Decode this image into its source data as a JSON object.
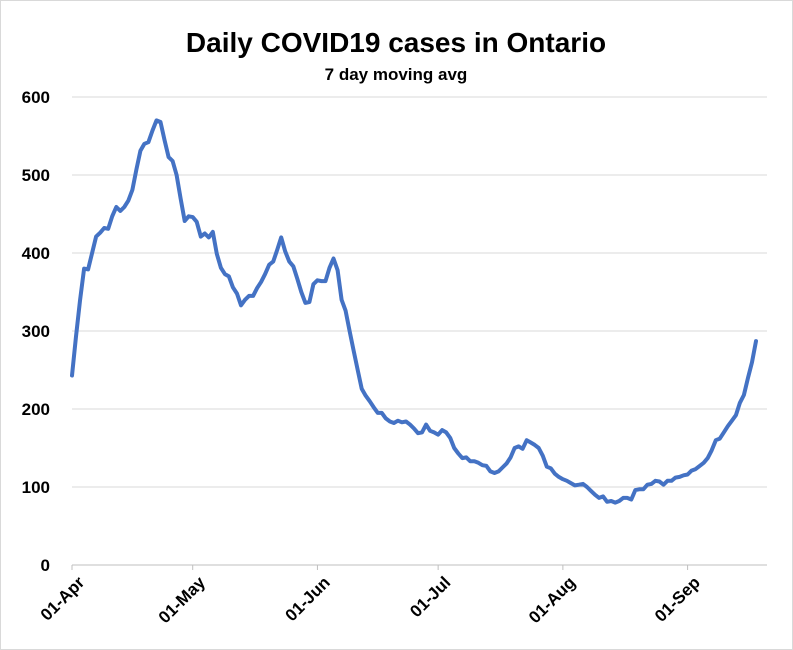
{
  "chart_data": {
    "type": "line",
    "title": "Daily COVID19 cases in Ontario",
    "subtitle": "7 day moving avg",
    "xlabel": "",
    "ylabel": "",
    "ylim": [
      0,
      600
    ],
    "yticks": [
      "0",
      "100",
      "200",
      "300",
      "400",
      "500",
      "600"
    ],
    "x_tick_labels": [
      "01-Apr",
      "01-May",
      "01-Jun",
      "01-Jul",
      "01-Aug",
      "01-Sep"
    ],
    "grid": true,
    "colors": {
      "series": "#4472c4"
    },
    "series": [
      {
        "x": [
          "2021-04-01",
          "2021-04-02",
          "2021-04-03",
          "2021-04-04",
          "2021-04-05",
          "2021-04-06",
          "2021-04-07",
          "2021-04-08",
          "2021-04-09",
          "2021-04-10",
          "2021-04-11",
          "2021-04-12",
          "2021-04-13",
          "2021-04-14",
          "2021-04-15",
          "2021-04-16",
          "2021-04-17",
          "2021-04-18",
          "2021-04-19",
          "2021-04-20",
          "2021-04-21",
          "2021-04-22",
          "2021-04-23",
          "2021-04-24",
          "2021-04-25",
          "2021-04-26",
          "2021-04-27",
          "2021-04-28",
          "2021-04-29",
          "2021-04-30",
          "2021-05-01",
          "2021-05-02",
          "2021-05-03",
          "2021-05-04",
          "2021-05-05",
          "2021-05-06",
          "2021-05-07",
          "2021-05-08",
          "2021-05-09",
          "2021-05-10",
          "2021-05-11",
          "2021-05-12",
          "2021-05-13",
          "2021-05-14",
          "2021-05-15",
          "2021-05-16",
          "2021-05-17",
          "2021-05-18",
          "2021-05-19",
          "2021-05-20",
          "2021-05-21",
          "2021-05-22",
          "2021-05-23",
          "2021-05-24",
          "2021-05-25",
          "2021-05-26",
          "2021-05-27",
          "2021-05-28",
          "2021-05-29",
          "2021-05-30",
          "2021-05-31",
          "2021-06-01",
          "2021-06-02",
          "2021-06-03",
          "2021-06-04",
          "2021-06-05",
          "2021-06-06",
          "2021-06-07",
          "2021-06-08",
          "2021-06-09",
          "2021-06-10",
          "2021-06-11",
          "2021-06-12",
          "2021-06-13",
          "2021-06-14",
          "2021-06-15",
          "2021-06-16",
          "2021-06-17",
          "2021-06-18",
          "2021-06-19",
          "2021-06-20",
          "2021-06-21",
          "2021-06-22",
          "2021-06-23",
          "2021-06-24",
          "2021-06-25",
          "2021-06-26",
          "2021-06-27",
          "2021-06-28",
          "2021-06-29",
          "2021-06-30",
          "2021-07-01",
          "2021-07-02",
          "2021-07-03",
          "2021-07-04",
          "2021-07-05",
          "2021-07-06",
          "2021-07-07",
          "2021-07-08",
          "2021-07-09",
          "2021-07-10",
          "2021-07-11",
          "2021-07-12",
          "2021-07-13",
          "2021-07-14",
          "2021-07-15",
          "2021-07-16",
          "2021-07-17",
          "2021-07-18",
          "2021-07-19",
          "2021-07-20",
          "2021-07-21",
          "2021-07-22",
          "2021-07-23",
          "2021-07-24",
          "2021-07-25",
          "2021-07-26",
          "2021-07-27",
          "2021-07-28",
          "2021-07-29",
          "2021-07-30",
          "2021-07-31",
          "2021-08-01",
          "2021-08-02",
          "2021-08-03",
          "2021-08-04",
          "2021-08-05",
          "2021-08-06",
          "2021-08-07",
          "2021-08-08",
          "2021-08-09",
          "2021-08-10",
          "2021-08-11",
          "2021-08-12",
          "2021-08-13",
          "2021-08-14",
          "2021-08-15",
          "2021-08-16",
          "2021-08-17",
          "2021-08-18",
          "2021-08-19",
          "2021-08-20",
          "2021-08-21",
          "2021-08-22",
          "2021-08-23",
          "2021-08-24",
          "2021-08-25",
          "2021-08-26",
          "2021-08-27",
          "2021-08-28",
          "2021-08-29",
          "2021-08-30",
          "2021-08-31",
          "2021-09-01",
          "2021-09-02",
          "2021-09-03",
          "2021-09-04",
          "2021-09-05",
          "2021-09-06",
          "2021-09-07",
          "2021-09-08",
          "2021-09-09",
          "2021-09-10",
          "2021-09-11",
          "2021-09-12",
          "2021-09-13",
          "2021-09-14",
          "2021-09-15",
          "2021-09-16",
          "2021-09-17",
          "2021-09-18"
        ],
        "values": [
          243,
          293,
          339,
          380,
          379,
          400,
          421,
          426,
          432,
          431,
          447,
          459,
          454,
          459,
          467,
          481,
          507,
          531,
          540,
          542,
          557,
          570,
          568,
          545,
          523,
          518,
          500,
          470,
          441,
          447,
          446,
          440,
          421,
          425,
          420,
          427,
          399,
          381,
          373,
          370,
          356,
          348,
          333,
          340,
          345,
          345,
          355,
          363,
          373,
          385,
          389,
          404,
          420,
          402,
          389,
          383,
          367,
          350,
          336,
          337,
          360,
          365,
          364,
          364,
          381,
          393,
          378,
          340,
          326,
          300,
          275,
          250,
          226,
          217,
          210,
          202,
          195,
          195,
          188,
          184,
          182,
          185,
          183,
          184,
          180,
          175,
          169,
          170,
          180,
          172,
          170,
          167,
          173,
          170,
          163,
          150,
          143,
          137,
          138,
          133,
          133,
          131,
          128,
          127,
          120,
          118,
          120,
          125,
          130,
          138,
          150,
          152,
          149,
          160,
          157,
          154,
          150,
          140,
          126,
          124,
          117,
          113,
          110,
          108,
          105,
          102,
          103,
          104,
          100,
          95,
          90,
          86,
          88,
          81,
          82,
          80,
          82,
          86,
          86,
          84,
          96,
          97,
          97,
          103,
          104,
          108,
          107,
          103,
          108,
          108,
          112,
          113,
          115,
          116,
          121,
          123,
          127,
          131,
          137,
          147,
          160,
          162,
          170,
          178,
          185,
          192,
          208,
          218,
          240,
          260,
          287
        ]
      }
    ]
  }
}
